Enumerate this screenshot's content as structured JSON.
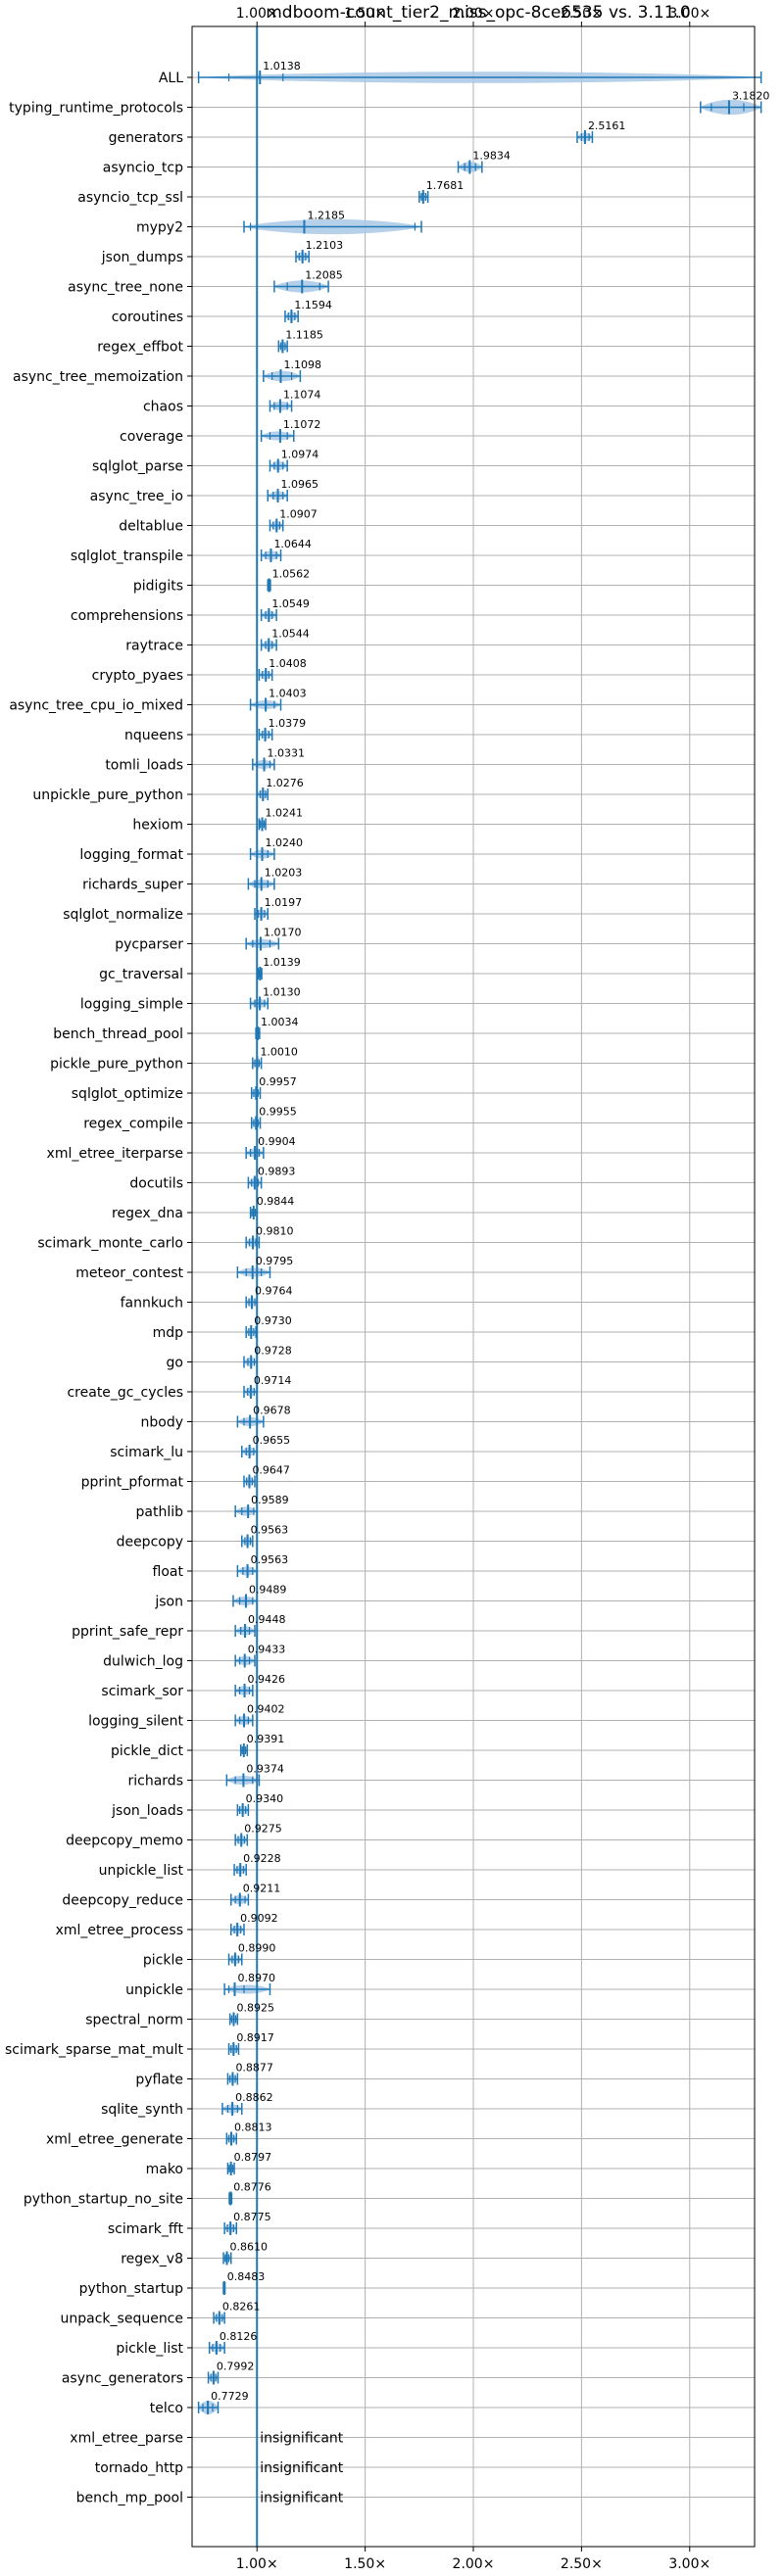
{
  "chart_data": {
    "type": "violin",
    "title": "mdboom-count_tier2_miss_opc-8ce6535 vs. 3.11.0",
    "xlabel": "",
    "ylabel": "",
    "xlim": [
      0.7,
      3.3
    ],
    "xticks": [
      1.0,
      1.5,
      2.0,
      2.5,
      3.0
    ],
    "xtick_labels": [
      "1.00×",
      "1.50×",
      "2.00×",
      "2.50×",
      "3.00×"
    ],
    "reference_line": 1.0,
    "grid": true,
    "colors": {
      "violin": "#a9c8e6",
      "line": "#1f77b4",
      "grid": "#b0b0b0"
    },
    "benchmarks": [
      {
        "name": "ALL",
        "mean": 1.0138,
        "label": "1.0138",
        "min": 0.73,
        "max": 3.33,
        "q1": 0.87,
        "q3": 1.12,
        "width": 0.38
      },
      {
        "name": "typing_runtime_protocols",
        "mean": 3.182,
        "label": "3.1820",
        "min": 3.05,
        "max": 3.33,
        "q1": 3.1,
        "q3": 3.25,
        "width": 0.5
      },
      {
        "name": "generators",
        "mean": 2.5161,
        "label": "2.5161",
        "min": 2.48,
        "max": 2.55,
        "q1": 2.5,
        "q3": 2.535,
        "width": 0.3
      },
      {
        "name": "asyncio_tcp",
        "mean": 1.9834,
        "label": "1.9834",
        "min": 1.93,
        "max": 2.04,
        "q1": 1.96,
        "q3": 2.01,
        "width": 0.35
      },
      {
        "name": "asyncio_tcp_ssl",
        "mean": 1.7681,
        "label": "1.7681",
        "min": 1.75,
        "max": 1.79,
        "q1": 1.76,
        "q3": 1.78,
        "width": 0.3
      },
      {
        "name": "mypy2",
        "mean": 1.2185,
        "label": "1.2185",
        "min": 0.94,
        "max": 1.76,
        "q1": 0.97,
        "q3": 1.73,
        "width": 0.5
      },
      {
        "name": "json_dumps",
        "mean": 1.2103,
        "label": "1.2103",
        "min": 1.18,
        "max": 1.24,
        "q1": 1.195,
        "q3": 1.225,
        "width": 0.3
      },
      {
        "name": "async_tree_none",
        "mean": 1.2085,
        "label": "1.2085",
        "min": 1.08,
        "max": 1.33,
        "q1": 1.14,
        "q3": 1.29,
        "width": 0.4
      },
      {
        "name": "coroutines",
        "mean": 1.1594,
        "label": "1.1594",
        "min": 1.13,
        "max": 1.19,
        "q1": 1.145,
        "q3": 1.175,
        "width": 0.3
      },
      {
        "name": "regex_effbot",
        "mean": 1.1185,
        "label": "1.1185",
        "min": 1.1,
        "max": 1.14,
        "q1": 1.11,
        "q3": 1.13,
        "width": 0.3
      },
      {
        "name": "async_tree_memoization",
        "mean": 1.1098,
        "label": "1.1098",
        "min": 1.03,
        "max": 1.2,
        "q1": 1.07,
        "q3": 1.16,
        "width": 0.35
      },
      {
        "name": "chaos",
        "mean": 1.1074,
        "label": "1.1074",
        "min": 1.06,
        "max": 1.16,
        "q1": 1.08,
        "q3": 1.14,
        "width": 0.3
      },
      {
        "name": "coverage",
        "mean": 1.1072,
        "label": "1.1072",
        "min": 1.02,
        "max": 1.17,
        "q1": 1.06,
        "q3": 1.14,
        "width": 0.3
      },
      {
        "name": "sqlglot_parse",
        "mean": 1.0974,
        "label": "1.0974",
        "min": 1.06,
        "max": 1.14,
        "q1": 1.08,
        "q3": 1.12,
        "width": 0.3
      },
      {
        "name": "async_tree_io",
        "mean": 1.0965,
        "label": "1.0965",
        "min": 1.05,
        "max": 1.14,
        "q1": 1.075,
        "q3": 1.12,
        "width": 0.3
      },
      {
        "name": "deltablue",
        "mean": 1.0907,
        "label": "1.0907",
        "min": 1.06,
        "max": 1.12,
        "q1": 1.075,
        "q3": 1.105,
        "width": 0.3
      },
      {
        "name": "sqlglot_transpile",
        "mean": 1.0644,
        "label": "1.0644",
        "min": 1.02,
        "max": 1.11,
        "q1": 1.04,
        "q3": 1.09,
        "width": 0.3
      },
      {
        "name": "pidigits",
        "mean": 1.0562,
        "label": "1.0562",
        "min": 1.05,
        "max": 1.062,
        "q1": 1.053,
        "q3": 1.059,
        "width": 0.2
      },
      {
        "name": "comprehensions",
        "mean": 1.0549,
        "label": "1.0549",
        "min": 1.02,
        "max": 1.09,
        "q1": 1.04,
        "q3": 1.07,
        "width": 0.3
      },
      {
        "name": "raytrace",
        "mean": 1.0544,
        "label": "1.0544",
        "min": 1.02,
        "max": 1.09,
        "q1": 1.04,
        "q3": 1.07,
        "width": 0.3
      },
      {
        "name": "crypto_pyaes",
        "mean": 1.0408,
        "label": "1.0408",
        "min": 1.01,
        "max": 1.07,
        "q1": 1.025,
        "q3": 1.055,
        "width": 0.3
      },
      {
        "name": "async_tree_cpu_io_mixed",
        "mean": 1.0403,
        "label": "1.0403",
        "min": 0.97,
        "max": 1.11,
        "q1": 1.0,
        "q3": 1.08,
        "width": 0.3
      },
      {
        "name": "nqueens",
        "mean": 1.0379,
        "label": "1.0379",
        "min": 1.01,
        "max": 1.07,
        "q1": 1.025,
        "q3": 1.055,
        "width": 0.3
      },
      {
        "name": "tomli_loads",
        "mean": 1.0331,
        "label": "1.0331",
        "min": 0.98,
        "max": 1.08,
        "q1": 1.0,
        "q3": 1.06,
        "width": 0.3
      },
      {
        "name": "unpickle_pure_python",
        "mean": 1.0276,
        "label": "1.0276",
        "min": 1.0,
        "max": 1.05,
        "q1": 1.015,
        "q3": 1.04,
        "width": 0.3
      },
      {
        "name": "hexiom",
        "mean": 1.0241,
        "label": "1.0241",
        "min": 1.01,
        "max": 1.04,
        "q1": 1.015,
        "q3": 1.033,
        "width": 0.25
      },
      {
        "name": "logging_format",
        "mean": 1.024,
        "label": "1.0240",
        "min": 0.97,
        "max": 1.08,
        "q1": 1.0,
        "q3": 1.05,
        "width": 0.3
      },
      {
        "name": "richards_super",
        "mean": 1.0203,
        "label": "1.0203",
        "min": 0.96,
        "max": 1.08,
        "q1": 0.99,
        "q3": 1.05,
        "width": 0.3
      },
      {
        "name": "sqlglot_normalize",
        "mean": 1.0197,
        "label": "1.0197",
        "min": 0.99,
        "max": 1.05,
        "q1": 1.005,
        "q3": 1.035,
        "width": 0.3
      },
      {
        "name": "pycparser",
        "mean": 1.017,
        "label": "1.0170",
        "min": 0.95,
        "max": 1.1,
        "q1": 0.98,
        "q3": 1.06,
        "width": 0.3
      },
      {
        "name": "gc_traversal",
        "mean": 1.0139,
        "label": "1.0139",
        "min": 1.005,
        "max": 1.022,
        "q1": 1.009,
        "q3": 1.018,
        "width": 0.2
      },
      {
        "name": "logging_simple",
        "mean": 1.013,
        "label": "1.0130",
        "min": 0.97,
        "max": 1.05,
        "q1": 0.99,
        "q3": 1.035,
        "width": 0.3
      },
      {
        "name": "bench_thread_pool",
        "mean": 1.0034,
        "label": "1.0034",
        "min": 0.995,
        "max": 1.012,
        "q1": 0.999,
        "q3": 1.008,
        "width": 0.2
      },
      {
        "name": "pickle_pure_python",
        "mean": 1.001,
        "label": "1.0010",
        "min": 0.98,
        "max": 1.02,
        "q1": 0.99,
        "q3": 1.01,
        "width": 0.3
      },
      {
        "name": "sqlglot_optimize",
        "mean": 0.9957,
        "label": "0.9957",
        "min": 0.975,
        "max": 1.015,
        "q1": 0.985,
        "q3": 1.005,
        "width": 0.3
      },
      {
        "name": "regex_compile",
        "mean": 0.9955,
        "label": "0.9955",
        "min": 0.975,
        "max": 1.015,
        "q1": 0.985,
        "q3": 1.005,
        "width": 0.3
      },
      {
        "name": "xml_etree_iterparse",
        "mean": 0.9904,
        "label": "0.9904",
        "min": 0.95,
        "max": 1.03,
        "q1": 0.97,
        "q3": 1.01,
        "width": 0.3
      },
      {
        "name": "docutils",
        "mean": 0.9893,
        "label": "0.9893",
        "min": 0.96,
        "max": 1.02,
        "q1": 0.975,
        "q3": 1.005,
        "width": 0.3
      },
      {
        "name": "regex_dna",
        "mean": 0.9844,
        "label": "0.9844",
        "min": 0.97,
        "max": 1.0,
        "q1": 0.977,
        "q3": 0.992,
        "width": 0.25
      },
      {
        "name": "scimark_monte_carlo",
        "mean": 0.981,
        "label": "0.9810",
        "min": 0.95,
        "max": 1.01,
        "q1": 0.965,
        "q3": 0.995,
        "width": 0.3
      },
      {
        "name": "meteor_contest",
        "mean": 0.9795,
        "label": "0.9795",
        "min": 0.91,
        "max": 1.06,
        "q1": 0.95,
        "q3": 1.02,
        "width": 0.3
      },
      {
        "name": "fannkuch",
        "mean": 0.9764,
        "label": "0.9764",
        "min": 0.95,
        "max": 1.0,
        "q1": 0.963,
        "q3": 0.99,
        "width": 0.3
      },
      {
        "name": "mdp",
        "mean": 0.973,
        "label": "0.9730",
        "min": 0.95,
        "max": 0.995,
        "q1": 0.962,
        "q3": 0.985,
        "width": 0.3
      },
      {
        "name": "go",
        "mean": 0.9728,
        "label": "0.9728",
        "min": 0.94,
        "max": 1.0,
        "q1": 0.958,
        "q3": 0.988,
        "width": 0.3
      },
      {
        "name": "create_gc_cycles",
        "mean": 0.9714,
        "label": "0.9714",
        "min": 0.94,
        "max": 1.0,
        "q1": 0.957,
        "q3": 0.987,
        "width": 0.3
      },
      {
        "name": "nbody",
        "mean": 0.9678,
        "label": "0.9678",
        "min": 0.91,
        "max": 1.03,
        "q1": 0.94,
        "q3": 1.0,
        "width": 0.3
      },
      {
        "name": "scimark_lu",
        "mean": 0.9655,
        "label": "0.9655",
        "min": 0.93,
        "max": 1.0,
        "q1": 0.95,
        "q3": 0.985,
        "width": 0.3
      },
      {
        "name": "pprint_pformat",
        "mean": 0.9647,
        "label": "0.9647",
        "min": 0.94,
        "max": 0.99,
        "q1": 0.952,
        "q3": 0.978,
        "width": 0.3
      },
      {
        "name": "pathlib",
        "mean": 0.9589,
        "label": "0.9589",
        "min": 0.9,
        "max": 1.0,
        "q1": 0.93,
        "q3": 0.985,
        "width": 0.3
      },
      {
        "name": "deepcopy",
        "mean": 0.9563,
        "label": "0.9563",
        "min": 0.93,
        "max": 0.98,
        "q1": 0.944,
        "q3": 0.97,
        "width": 0.3
      },
      {
        "name": "float",
        "mean": 0.9563,
        "label": "0.9563",
        "min": 0.91,
        "max": 1.0,
        "q1": 0.935,
        "q3": 0.98,
        "width": 0.3
      },
      {
        "name": "json",
        "mean": 0.9489,
        "label": "0.9489",
        "min": 0.89,
        "max": 1.0,
        "q1": 0.92,
        "q3": 0.98,
        "width": 0.3
      },
      {
        "name": "pprint_safe_repr",
        "mean": 0.9448,
        "label": "0.9448",
        "min": 0.9,
        "max": 0.99,
        "q1": 0.925,
        "q3": 0.965,
        "width": 0.3
      },
      {
        "name": "dulwich_log",
        "mean": 0.9433,
        "label": "0.9433",
        "min": 0.9,
        "max": 0.99,
        "q1": 0.92,
        "q3": 0.965,
        "width": 0.3
      },
      {
        "name": "scimark_sor",
        "mean": 0.9426,
        "label": "0.9426",
        "min": 0.9,
        "max": 0.98,
        "q1": 0.92,
        "q3": 0.965,
        "width": 0.3
      },
      {
        "name": "logging_silent",
        "mean": 0.9402,
        "label": "0.9402",
        "min": 0.9,
        "max": 0.98,
        "q1": 0.92,
        "q3": 0.96,
        "width": 0.3
      },
      {
        "name": "pickle_dict",
        "mean": 0.9391,
        "label": "0.9391",
        "min": 0.925,
        "max": 0.955,
        "q1": 0.932,
        "q3": 0.947,
        "width": 0.25
      },
      {
        "name": "richards",
        "mean": 0.9374,
        "label": "0.9374",
        "min": 0.86,
        "max": 1.01,
        "q1": 0.9,
        "q3": 0.98,
        "width": 0.3
      },
      {
        "name": "json_loads",
        "mean": 0.934,
        "label": "0.9340",
        "min": 0.91,
        "max": 0.96,
        "q1": 0.92,
        "q3": 0.948,
        "width": 0.3
      },
      {
        "name": "deepcopy_memo",
        "mean": 0.9275,
        "label": "0.9275",
        "min": 0.9,
        "max": 0.955,
        "q1": 0.913,
        "q3": 0.942,
        "width": 0.3
      },
      {
        "name": "unpickle_list",
        "mean": 0.9228,
        "label": "0.9228",
        "min": 0.895,
        "max": 0.95,
        "q1": 0.908,
        "q3": 0.938,
        "width": 0.3
      },
      {
        "name": "deepcopy_reduce",
        "mean": 0.9211,
        "label": "0.9211",
        "min": 0.88,
        "max": 0.96,
        "q1": 0.9,
        "q3": 0.945,
        "width": 0.3
      },
      {
        "name": "xml_etree_process",
        "mean": 0.9092,
        "label": "0.9092",
        "min": 0.88,
        "max": 0.94,
        "q1": 0.895,
        "q3": 0.925,
        "width": 0.3
      },
      {
        "name": "pickle",
        "mean": 0.899,
        "label": "0.8990",
        "min": 0.87,
        "max": 0.93,
        "q1": 0.885,
        "q3": 0.915,
        "width": 0.3
      },
      {
        "name": "unpickle",
        "mean": 0.897,
        "label": "0.8970",
        "min": 0.85,
        "max": 1.06,
        "q1": 0.87,
        "q3": 0.94,
        "width": 0.3
      },
      {
        "name": "spectral_norm",
        "mean": 0.8925,
        "label": "0.8925",
        "min": 0.875,
        "max": 0.91,
        "q1": 0.883,
        "q3": 0.902,
        "width": 0.3
      },
      {
        "name": "scimark_sparse_mat_mult",
        "mean": 0.8917,
        "label": "0.8917",
        "min": 0.87,
        "max": 0.915,
        "q1": 0.88,
        "q3": 0.905,
        "width": 0.3
      },
      {
        "name": "pyflate",
        "mean": 0.8877,
        "label": "0.8877",
        "min": 0.865,
        "max": 0.91,
        "q1": 0.875,
        "q3": 0.9,
        "width": 0.3
      },
      {
        "name": "sqlite_synth",
        "mean": 0.8862,
        "label": "0.8862",
        "min": 0.84,
        "max": 0.93,
        "q1": 0.865,
        "q3": 0.91,
        "width": 0.3
      },
      {
        "name": "xml_etree_generate",
        "mean": 0.8813,
        "label": "0.8813",
        "min": 0.86,
        "max": 0.905,
        "q1": 0.87,
        "q3": 0.893,
        "width": 0.3
      },
      {
        "name": "mako",
        "mean": 0.8797,
        "label": "0.8797",
        "min": 0.865,
        "max": 0.895,
        "q1": 0.872,
        "q3": 0.888,
        "width": 0.3
      },
      {
        "name": "python_startup_no_site",
        "mean": 0.8776,
        "label": "0.8776",
        "min": 0.872,
        "max": 0.883,
        "q1": 0.875,
        "q3": 0.881,
        "width": 0.2
      },
      {
        "name": "scimark_fft",
        "mean": 0.8775,
        "label": "0.8775",
        "min": 0.85,
        "max": 0.905,
        "q1": 0.863,
        "q3": 0.892,
        "width": 0.3
      },
      {
        "name": "regex_v8",
        "mean": 0.861,
        "label": "0.8610",
        "min": 0.845,
        "max": 0.88,
        "q1": 0.853,
        "q3": 0.87,
        "width": 0.3
      },
      {
        "name": "python_startup",
        "mean": 0.8483,
        "label": "0.8483",
        "min": 0.845,
        "max": 0.852,
        "q1": 0.847,
        "q3": 0.85,
        "width": 0.15
      },
      {
        "name": "unpack_sequence",
        "mean": 0.8261,
        "label": "0.8261",
        "min": 0.8,
        "max": 0.85,
        "q1": 0.812,
        "q3": 0.84,
        "width": 0.3
      },
      {
        "name": "pickle_list",
        "mean": 0.8126,
        "label": "0.8126",
        "min": 0.78,
        "max": 0.85,
        "q1": 0.795,
        "q3": 0.83,
        "width": 0.3
      },
      {
        "name": "async_generators",
        "mean": 0.7992,
        "label": "0.7992",
        "min": 0.775,
        "max": 0.82,
        "q1": 0.787,
        "q3": 0.81,
        "width": 0.3
      },
      {
        "name": "telco",
        "mean": 0.7729,
        "label": "0.7729",
        "min": 0.73,
        "max": 0.82,
        "q1": 0.75,
        "q3": 0.795,
        "width": 0.45
      },
      {
        "name": "xml_etree_parse",
        "insignificant": true,
        "label": "insignificant"
      },
      {
        "name": "tornado_http",
        "insignificant": true,
        "label": "insignificant"
      },
      {
        "name": "bench_mp_pool",
        "insignificant": true,
        "label": "insignificant"
      }
    ]
  }
}
